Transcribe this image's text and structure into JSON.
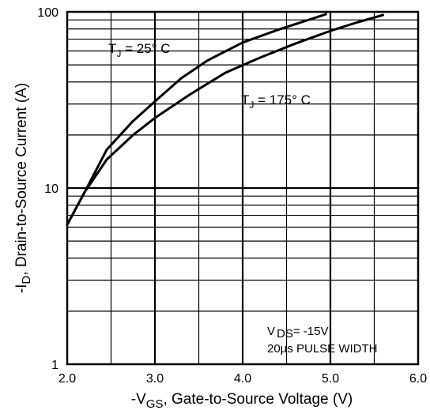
{
  "chart_data": {
    "type": "line",
    "title": "",
    "xlabel": {
      "prefix": "-V",
      "sub": "GS",
      "rest": ", Gate-to-Source Voltage (V)"
    },
    "ylabel": {
      "prefix": "-I",
      "sub": "D",
      "rest": ",  Drain-to-Source Current (A)"
    },
    "xlim": [
      2.0,
      6.0
    ],
    "ylim": [
      1,
      100
    ],
    "yscale": "log",
    "grid": true,
    "x_tick_labels": [
      "2.0",
      "3.0",
      "4.0",
      "5.0",
      "6.0"
    ],
    "y_tick_labels": [
      "1",
      "10",
      "100"
    ],
    "series": [
      {
        "label": {
          "main": "T",
          "sub": "J",
          "rest": " = 25° C"
        },
        "x": [
          2.0,
          2.2,
          2.45,
          2.75,
          3.0,
          3.3,
          3.6,
          4.0,
          4.4,
          4.75,
          4.95
        ],
        "y": [
          6.2,
          9.5,
          16.5,
          24,
          31,
          42,
          53,
          67,
          79,
          90,
          97
        ]
      },
      {
        "label": {
          "main": "T",
          "sub": "J",
          "rest": " = 175° C"
        },
        "x": [
          2.0,
          2.2,
          2.45,
          2.75,
          3.0,
          3.4,
          3.8,
          4.2,
          4.6,
          5.0,
          5.3,
          5.6
        ],
        "y": [
          6.2,
          9.5,
          14.5,
          20,
          25,
          34,
          45,
          55,
          66,
          78,
          87,
          96
        ]
      }
    ],
    "conditions": {
      "line1_prefix": "V",
      "line1_sub": "DS",
      "line1_rest": "= -15V",
      "line2": "20µs PULSE WIDTH"
    }
  }
}
